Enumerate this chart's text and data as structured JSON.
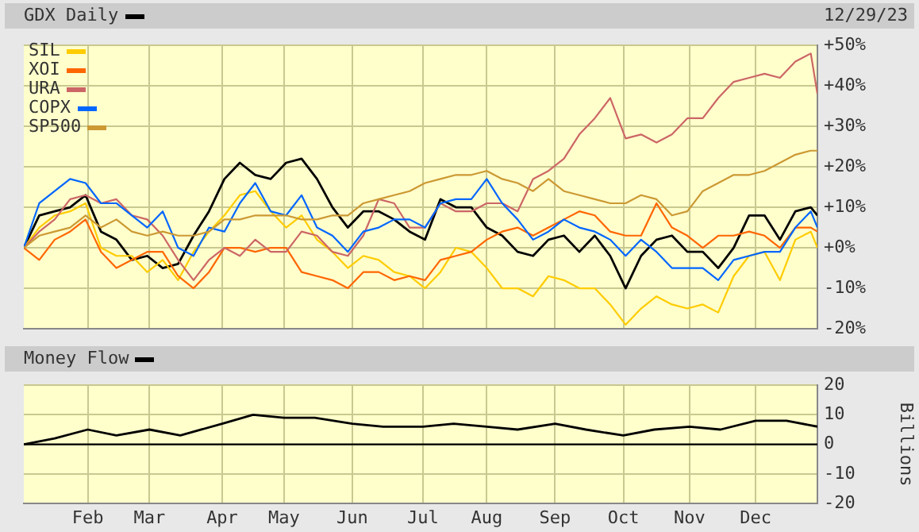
{
  "chart_data": [
    {
      "type": "line",
      "legend": "top left",
      "grid": true,
      "marker": "none",
      "line_style": "solid",
      "tick_labels": "y",
      "annotations": [
        "12/29/23"
      ],
      "x": [
        "--01-03",
        "--01-10",
        "--01-17",
        "--01-24",
        "--01-31",
        "--02-07",
        "--02-14",
        "--02-21",
        "--02-28",
        "--03-07",
        "--03-14",
        "--03-21",
        "--03-28",
        "--04-04",
        "--04-11",
        "--04-18",
        "--04-25",
        "--05-02",
        "--05-09",
        "--05-16",
        "--05-23",
        "--05-30",
        "--06-06",
        "--06-13",
        "--06-20",
        "--06-27",
        "--07-04",
        "--07-11",
        "--07-18",
        "--07-25",
        "--08-01",
        "--08-08",
        "--08-15",
        "--08-22",
        "--08-29",
        "--09-05",
        "--09-12",
        "--09-19",
        "--09-26",
        "--10-03",
        "--10-10",
        "--10-17",
        "--10-24",
        "--10-31",
        "--11-07",
        "--11-14",
        "--11-21",
        "--11-28",
        "--12-05",
        "--12-12",
        "--12-19",
        "--12-26",
        "--12-29"
      ],
      "xlim": [
        "--01-03",
        "--12-29"
      ],
      "xticks": [
        {
          "value": "--02-01",
          "label": null
        },
        {
          "value": "--03-01",
          "label": null
        },
        {
          "value": "--04-03",
          "label": null
        },
        {
          "value": "--05-01",
          "label": null
        },
        {
          "value": "--06-01",
          "label": null
        },
        {
          "value": "--07-03",
          "label": null
        },
        {
          "value": "--08-01",
          "label": null
        },
        {
          "value": "--09-01",
          "label": null
        },
        {
          "value": "--10-02",
          "label": null
        },
        {
          "value": "--11-01",
          "label": null
        },
        {
          "value": "--12-01",
          "label": null
        }
      ],
      "ylim": [
        -20,
        50
      ],
      "yticks": [
        {
          "value": -20,
          "label": "-20%"
        },
        {
          "value": -10,
          "label": "-10%"
        },
        {
          "value": 0,
          "label": "+0%"
        },
        {
          "value": 10,
          "label": "+10%"
        },
        {
          "value": 20,
          "label": "+20%"
        },
        {
          "value": 30,
          "label": "+30%"
        },
        {
          "value": 40,
          "label": "+40%"
        },
        {
          "value": 50,
          "label": "+50%"
        }
      ],
      "series": [
        {
          "name": "GDX Daily",
          "color": "#000000",
          "values": [
            0,
            8,
            9,
            10,
            13,
            4,
            2,
            -3,
            -2,
            -5,
            -4,
            3,
            9,
            17,
            21,
            18,
            17,
            21,
            22,
            17,
            10,
            5,
            9,
            9,
            7,
            4,
            2,
            12,
            10,
            10,
            5,
            3,
            -1,
            -2,
            2,
            3,
            -1,
            3,
            -2,
            -10,
            -2,
            2,
            3,
            -1,
            -1,
            -5,
            0,
            8,
            8,
            2,
            9,
            10,
            8
          ]
        },
        {
          "name": "SIL",
          "color": "#ffcc00",
          "values": [
            0,
            5,
            8,
            9,
            11,
            0,
            -2,
            -2,
            -6,
            -3,
            -8,
            -1,
            4,
            8,
            13,
            14,
            9,
            5,
            8,
            2,
            -1,
            -5,
            -2,
            -3,
            -6,
            -7,
            -10,
            -6,
            0,
            -1,
            -5,
            -10,
            -10,
            -12,
            -7,
            -8,
            -10,
            -10,
            -14,
            -19,
            -15,
            -12,
            -14,
            -15,
            -14,
            -16,
            -7,
            -2,
            -1,
            -8,
            2,
            4,
            0
          ]
        },
        {
          "name": "XOI",
          "color": "#ff6600",
          "values": [
            0,
            -3,
            2,
            4,
            7,
            -1,
            -5,
            -3,
            -1,
            -1,
            -7,
            -10,
            -6,
            0,
            0,
            -1,
            0,
            0,
            -6,
            -7,
            -8,
            -10,
            -6,
            -6,
            -8,
            -7,
            -8,
            -3,
            -2,
            -1,
            2,
            4,
            5,
            3,
            5,
            7,
            9,
            8,
            4,
            3,
            3,
            11,
            5,
            3,
            0,
            3,
            3,
            4,
            3,
            0,
            5,
            5,
            4
          ]
        },
        {
          "name": "URA",
          "color": "#cc6666",
          "values": [
            0,
            4,
            7,
            12,
            13,
            11,
            12,
            8,
            7,
            3,
            -3,
            -8,
            -3,
            0,
            -2,
            2,
            -1,
            -1,
            4,
            3,
            -1,
            -2,
            3,
            12,
            11,
            5,
            5,
            11,
            9,
            9,
            11,
            11,
            9,
            17,
            19,
            22,
            28,
            32,
            37,
            27,
            28,
            26,
            28,
            32,
            32,
            37,
            41,
            42,
            43,
            42,
            46,
            48,
            38
          ]
        },
        {
          "name": "COPX",
          "color": "#0066ff",
          "values": [
            0,
            11,
            14,
            17,
            16,
            11,
            11,
            8,
            5,
            9,
            0,
            -2,
            5,
            4,
            11,
            16,
            9,
            8,
            13,
            5,
            3,
            -1,
            4,
            5,
            7,
            7,
            5,
            11,
            12,
            12,
            17,
            11,
            7,
            2,
            4,
            7,
            5,
            4,
            2,
            -2,
            2,
            -1,
            -5,
            -5,
            -5,
            -8,
            -3,
            -2,
            -1,
            -1,
            5,
            9,
            5
          ]
        },
        {
          "name": "SP500",
          "color": "#cc9933",
          "values": [
            0,
            3,
            4,
            5,
            8,
            5,
            7,
            4,
            3,
            4,
            3,
            3,
            4,
            7,
            7,
            8,
            8,
            8,
            7,
            7,
            8,
            8,
            11,
            12,
            13,
            14,
            16,
            17,
            18,
            18,
            19,
            17,
            16,
            14,
            17,
            14,
            13,
            12,
            11,
            11,
            13,
            12,
            8,
            9,
            14,
            16,
            18,
            18,
            19,
            21,
            23,
            24,
            24
          ]
        }
      ]
    },
    {
      "type": "line",
      "ylabel": "Billions",
      "legend": "top left",
      "grid": true,
      "marker": "none",
      "line_style": "solid",
      "x": [
        "--01-03",
        "--01-17",
        "--02-01",
        "--02-14",
        "--03-01",
        "--03-15",
        "--04-03",
        "--04-17",
        "--05-01",
        "--05-15",
        "--06-01",
        "--06-15",
        "--07-03",
        "--07-17",
        "--08-01",
        "--08-15",
        "--09-01",
        "--09-15",
        "--10-02",
        "--10-16",
        "--11-01",
        "--11-15",
        "--12-01",
        "--12-15",
        "--12-29"
      ],
      "xlim": [
        "--01-03",
        "--12-29"
      ],
      "xticks": [
        {
          "value": "--02-01",
          "label": "Feb"
        },
        {
          "value": "--03-01",
          "label": "Mar"
        },
        {
          "value": "--04-03",
          "label": "Apr"
        },
        {
          "value": "--05-01",
          "label": "May"
        },
        {
          "value": "--06-01",
          "label": "Jun"
        },
        {
          "value": "--07-03",
          "label": "Jul"
        },
        {
          "value": "--08-01",
          "label": "Aug"
        },
        {
          "value": "--09-01",
          "label": "Sep"
        },
        {
          "value": "--10-02",
          "label": "Oct"
        },
        {
          "value": "--11-01",
          "label": "Nov"
        },
        {
          "value": "--12-01",
          "label": "Dec"
        }
      ],
      "ylim": [
        -20,
        20
      ],
      "yticks": [
        -20,
        -10,
        0,
        10,
        20
      ],
      "ref_lines": [
        {
          "axis": "y",
          "value": 0,
          "color": "#000000"
        }
      ],
      "series": [
        {
          "name": "Money Flow",
          "color": "#000000",
          "values": [
            0,
            2,
            5,
            3,
            5,
            3,
            7,
            10,
            9,
            9,
            7,
            6,
            6,
            7,
            6,
            5,
            7,
            5,
            3,
            5,
            6,
            5,
            8,
            8,
            6
          ]
        }
      ]
    }
  ]
}
